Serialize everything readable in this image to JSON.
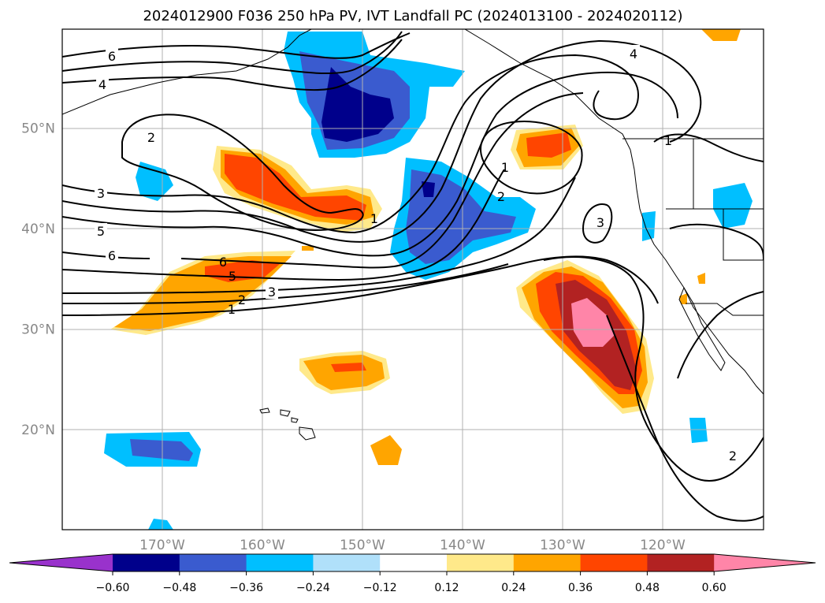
{
  "chart_data": {
    "type": "contour-map",
    "title": "2024012900 F036 250 hPa PV, IVT Landfall PC (2024013100 - 2024020112)",
    "lon_ticks": [
      {
        "lon": -170,
        "label": "170°W"
      },
      {
        "lon": -160,
        "label": "160°W"
      },
      {
        "lon": -150,
        "label": "150°W"
      },
      {
        "lon": -140,
        "label": "140°W"
      },
      {
        "lon": -130,
        "label": "130°W"
      },
      {
        "lon": -120,
        "label": "120°W"
      }
    ],
    "lat_ticks": [
      {
        "lat": 50,
        "label": "50°N"
      },
      {
        "lat": 40,
        "label": "40°N"
      },
      {
        "lat": 30,
        "label": "30°N"
      },
      {
        "lat": 20,
        "label": "20°N"
      }
    ],
    "grid": true,
    "colorbar": {
      "orientation": "horizontal",
      "levels": [
        -0.6,
        -0.48,
        -0.36,
        -0.24,
        -0.12,
        0.12,
        0.24,
        0.36,
        0.48,
        0.6
      ],
      "tick_labels": [
        "−0.60",
        "−0.48",
        "−0.36",
        "−0.24",
        "−0.12",
        "0.12",
        "0.24",
        "0.36",
        "0.48",
        "0.60"
      ],
      "colors": [
        "#9932cc",
        "#00008b",
        "#3a5bcf",
        "#00bfff",
        "#b0e0fa",
        "#ffffff",
        "#ffe98a",
        "#ffa500",
        "#ff4500",
        "#b22222",
        "#ff85a8"
      ]
    },
    "pv_contour_labels": [
      "6",
      "4",
      "2",
      "3",
      "5",
      "6",
      "6",
      "5",
      "3",
      "2",
      "1",
      "1",
      "2",
      "1",
      "3",
      "4",
      "1",
      "2"
    ]
  }
}
